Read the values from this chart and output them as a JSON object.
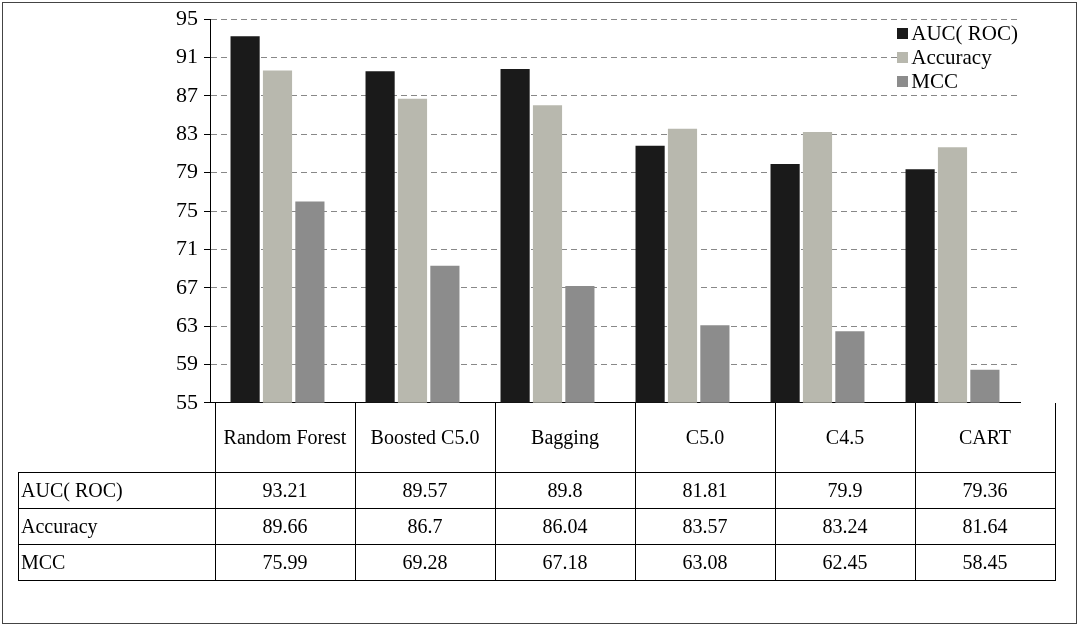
{
  "chart_data": {
    "type": "bar",
    "categories": [
      "Random Forest",
      "Boosted C5.0",
      "Bagging",
      "C5.0",
      "C4.5",
      "CART"
    ],
    "series": [
      {
        "name": "AUC( ROC)",
        "color": "#1a1a1a",
        "values": [
          93.21,
          89.57,
          89.8,
          81.81,
          79.9,
          79.36
        ]
      },
      {
        "name": "Accuracy",
        "color": "#b8b8ae",
        "values": [
          89.66,
          86.7,
          86.04,
          83.57,
          83.24,
          81.64
        ]
      },
      {
        "name": "MCC",
        "color": "#8c8c8c",
        "values": [
          75.99,
          69.28,
          67.18,
          63.08,
          62.45,
          58.45
        ]
      }
    ],
    "ylim": [
      55,
      95
    ],
    "yticks": [
      55,
      59,
      63,
      67,
      71,
      75,
      79,
      83,
      87,
      91,
      95
    ],
    "grid": "y",
    "legend": "top right",
    "data_labels": true
  }
}
